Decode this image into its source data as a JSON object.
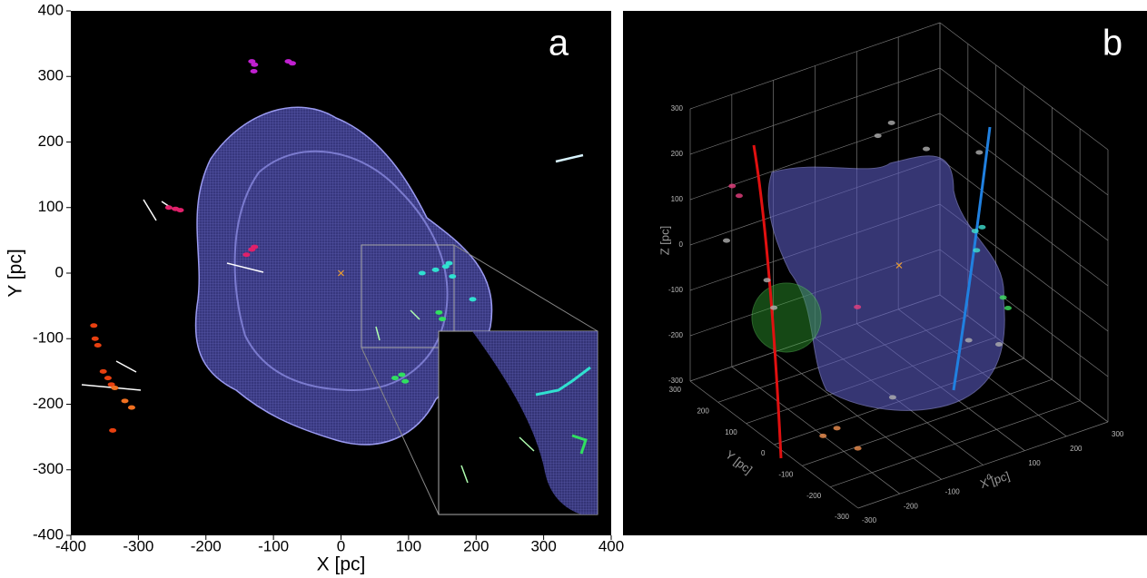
{
  "chart_data": [
    {
      "type": "scatter",
      "panel_label": "a",
      "x_label": "X [pc]",
      "y_label": "Y [pc]",
      "xlim": [
        -400,
        400
      ],
      "ylim": [
        -400,
        400
      ],
      "xticks": [
        -400,
        -300,
        -200,
        -100,
        0,
        100,
        200,
        300,
        400
      ],
      "yticks": [
        -400,
        -300,
        -200,
        -100,
        0,
        100,
        200,
        300,
        400
      ],
      "series": [
        {
          "color": "#c020d0",
          "x": [
            -132,
            -128,
            -129,
            -78,
            -72
          ],
          "y": [
            323,
            318,
            308,
            323,
            320
          ]
        },
        {
          "color": "#e0206a",
          "x": [
            -255,
            -245,
            -238,
            -140,
            -132,
            -128
          ],
          "y": [
            100,
            98,
            96,
            28,
            36,
            40
          ]
        },
        {
          "color": "#e84010",
          "x": [
            -366,
            -364,
            -360,
            -352,
            -345,
            -340,
            -338
          ],
          "y": [
            -80,
            -100,
            -110,
            -150,
            -160,
            -170,
            -240
          ]
        },
        {
          "color": "#f07020",
          "x": [
            -335,
            -320,
            -310
          ],
          "y": [
            -175,
            -195,
            -205
          ]
        },
        {
          "color": "#30e0d0",
          "x": [
            120,
            140,
            155,
            160,
            165,
            195
          ],
          "y": [
            0,
            5,
            10,
            15,
            -5,
            -40
          ]
        },
        {
          "color": "#30e060",
          "x": [
            80,
            90,
            95,
            150,
            145
          ],
          "y": [
            -160,
            -155,
            -165,
            -70,
            -60
          ]
        },
        {
          "color": "#f0a030",
          "marker": "x",
          "x": [
            0
          ],
          "y": [
            0
          ]
        }
      ]
    },
    {
      "type": "scatter3d",
      "panel_label": "b",
      "x_label": "X [pc]",
      "y_label": "Y [pc]",
      "z_label": "Z [pc]",
      "xlim": [
        -300,
        300
      ],
      "ylim": [
        -300,
        300
      ],
      "zlim": [
        -300,
        300
      ],
      "xticks": [
        -300,
        -200,
        -100,
        0,
        100,
        200,
        300
      ],
      "yticks": [
        -300,
        -200,
        -100,
        0,
        100,
        200,
        300
      ],
      "zticks": [
        -300,
        -200,
        -100,
        0,
        100,
        200,
        300
      ],
      "series": [
        {
          "color": "#b0b0b0",
          "x": [
            -280,
            -250,
            -200,
            150,
            200,
            260,
            100,
            -150,
            50,
            240
          ],
          "y": [
            200,
            100,
            150,
            250,
            200,
            100,
            -100,
            -200,
            150,
            0
          ],
          "z": [
            50,
            0,
            -100,
            150,
            100,
            120,
            -150,
            -150,
            200,
            -250
          ]
        },
        {
          "color": "#e84080",
          "x": [
            -300,
            -290,
            -100
          ],
          "y": [
            150,
            140,
            0
          ],
          "z": [
            200,
            180,
            -60
          ]
        },
        {
          "color": "#40e0d0",
          "x": [
            250,
            260,
            240
          ],
          "y": [
            100,
            90,
            80
          ],
          "z": [
            -50,
            -40,
            -80
          ]
        },
        {
          "color": "#40e060",
          "x": [
            250,
            255
          ],
          "y": [
            0,
            -10
          ],
          "z": [
            -150,
            -170
          ]
        },
        {
          "color": "#f09050",
          "x": [
            -250,
            -230,
            -200
          ],
          "y": [
            -100,
            -120,
            -150
          ],
          "z": [
            -250,
            -230,
            -270
          ]
        },
        {
          "color": "#f0a030",
          "marker": "x",
          "x": [
            0
          ],
          "y": [
            0
          ],
          "z": [
            0
          ]
        }
      ]
    }
  ]
}
